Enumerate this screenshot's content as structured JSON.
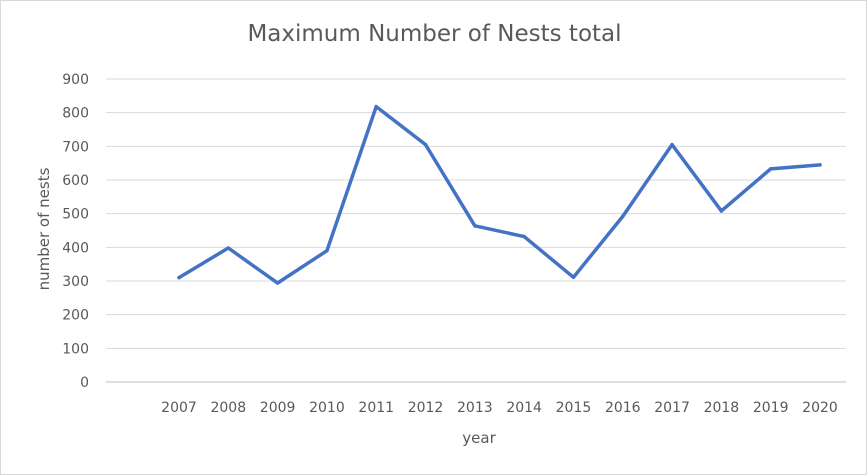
{
  "chart_data": {
    "type": "line",
    "title": "Maximum Number of Nests total",
    "xlabel": "year",
    "ylabel": "number of nests",
    "categories": [
      "2007",
      "2008",
      "2009",
      "2010",
      "2011",
      "2012",
      "2013",
      "2014",
      "2015",
      "2016",
      "2017",
      "2018",
      "2019",
      "2020"
    ],
    "series": [
      {
        "values": [
          310,
          398,
          294,
          390,
          818,
          705,
          464,
          432,
          311,
          492,
          705,
          508,
          633,
          645
        ],
        "color": "#4472c4"
      }
    ],
    "ylim": [
      0,
      900
    ],
    "yticks": [
      "0",
      "100",
      "200",
      "300",
      "400",
      "500",
      "600",
      "700",
      "800",
      "900"
    ],
    "grid": true,
    "legend": "none"
  }
}
